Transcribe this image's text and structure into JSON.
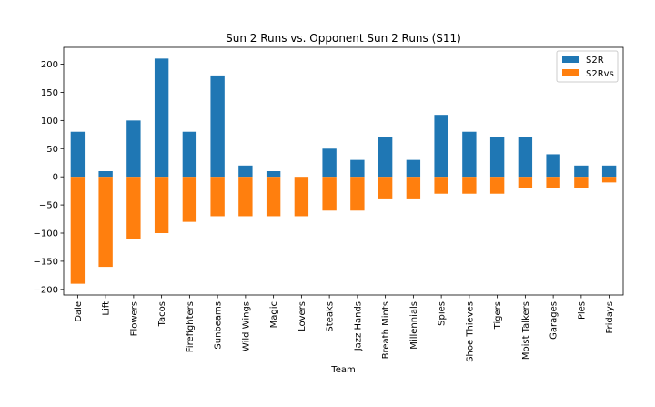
{
  "chart_data": {
    "type": "bar",
    "title": "Sun 2 Runs vs. Opponent Sun 2 Runs (S11)",
    "xlabel": "Team",
    "ylabel": "",
    "ylim": [
      -210,
      230
    ],
    "yticks": [
      -200,
      -150,
      -100,
      -50,
      0,
      50,
      100,
      150,
      200
    ],
    "ytick_labels": [
      "−200",
      "−150",
      "−100",
      "−50",
      "0",
      "50",
      "100",
      "150",
      "200"
    ],
    "categories": [
      "Dale",
      "Lift",
      "Flowers",
      "Tacos",
      "Firefighters",
      "Sunbeams",
      "Wild Wings",
      "Magic",
      "Lovers",
      "Steaks",
      "Jazz Hands",
      "Breath Mints",
      "Millennials",
      "Spies",
      "Shoe Thieves",
      "Tigers",
      "Moist Talkers",
      "Garages",
      "Pies",
      "Fridays"
    ],
    "series": [
      {
        "name": "S2R",
        "color": "#1f77b4",
        "values": [
          80,
          10,
          100,
          210,
          80,
          180,
          20,
          10,
          0,
          50,
          30,
          70,
          30,
          110,
          80,
          70,
          70,
          40,
          20,
          20
        ]
      },
      {
        "name": "S2Rvs",
        "color": "#ff7f0e",
        "values": [
          -190,
          -160,
          -110,
          -100,
          -80,
          -70,
          -70,
          -70,
          -70,
          -60,
          -60,
          -40,
          -40,
          -30,
          -30,
          -30,
          -20,
          -20,
          -20,
          -10
        ]
      }
    ],
    "stacked": true,
    "grid": false,
    "legend": "top-right"
  }
}
